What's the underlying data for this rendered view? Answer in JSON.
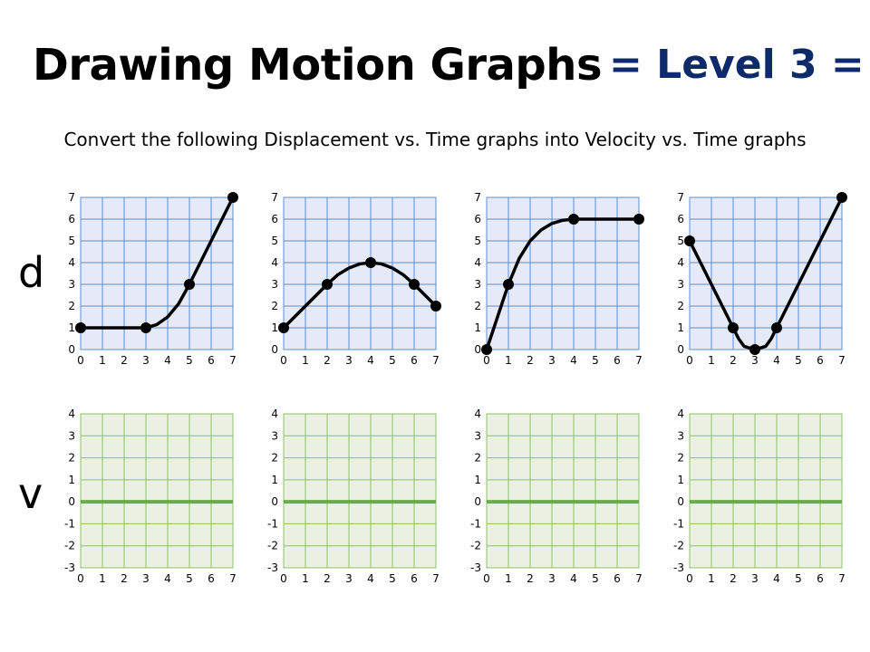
{
  "title": "Drawing Motion Graphs",
  "level": "= Level 3 =",
  "subtitle": "Convert the following Displacement vs. Time graphs into Velocity vs. Time graphs",
  "row_labels": {
    "d": "d",
    "v": "v"
  },
  "colors": {
    "d_fill": "#e6eaf6",
    "d_grid": "#5b8fd1",
    "v_fill": "#eaf1e3",
    "v_grid": "#8cbf6a",
    "v_zero": "#6aab45",
    "curve": "#000000"
  },
  "chart_data": [
    {
      "type": "line",
      "row": "d",
      "xlim": [
        0,
        7
      ],
      "ylim": [
        0,
        7
      ],
      "x_ticks": [
        0,
        1,
        2,
        3,
        4,
        5,
        6,
        7
      ],
      "y_ticks": [
        0,
        1,
        2,
        3,
        4,
        5,
        6,
        7
      ],
      "points": [
        [
          0,
          1
        ],
        [
          3,
          1
        ],
        [
          5,
          3
        ],
        [
          7,
          7
        ]
      ],
      "curve": [
        [
          0,
          1
        ],
        [
          3,
          1
        ],
        [
          3.5,
          1.15
        ],
        [
          4,
          1.5
        ],
        [
          4.5,
          2.1
        ],
        [
          5,
          3
        ],
        [
          7,
          7
        ]
      ]
    },
    {
      "type": "line",
      "row": "d",
      "xlim": [
        0,
        7
      ],
      "ylim": [
        0,
        7
      ],
      "x_ticks": [
        0,
        1,
        2,
        3,
        4,
        5,
        6,
        7
      ],
      "y_ticks": [
        0,
        1,
        2,
        3,
        4,
        5,
        6,
        7
      ],
      "points": [
        [
          0,
          1
        ],
        [
          2,
          3
        ],
        [
          4,
          4
        ],
        [
          6,
          3
        ],
        [
          7,
          2
        ]
      ],
      "curve": [
        [
          0,
          1
        ],
        [
          2,
          3
        ],
        [
          2.5,
          3.45
        ],
        [
          3,
          3.75
        ],
        [
          3.5,
          3.94
        ],
        [
          4,
          4
        ],
        [
          4.5,
          3.94
        ],
        [
          5,
          3.75
        ],
        [
          5.5,
          3.44
        ],
        [
          6,
          3
        ],
        [
          7,
          2
        ]
      ]
    },
    {
      "type": "line",
      "row": "d",
      "xlim": [
        0,
        7
      ],
      "ylim": [
        0,
        7
      ],
      "x_ticks": [
        0,
        1,
        2,
        3,
        4,
        5,
        6,
        7
      ],
      "y_ticks": [
        0,
        1,
        2,
        3,
        4,
        5,
        6,
        7
      ],
      "points": [
        [
          0,
          0
        ],
        [
          1,
          3
        ],
        [
          4,
          6
        ],
        [
          7,
          6
        ]
      ],
      "curve": [
        [
          0,
          0
        ],
        [
          1,
          3
        ],
        [
          1.5,
          4.2
        ],
        [
          2,
          5
        ],
        [
          2.5,
          5.5
        ],
        [
          3,
          5.8
        ],
        [
          3.5,
          5.95
        ],
        [
          4,
          6
        ],
        [
          7,
          6
        ]
      ]
    },
    {
      "type": "line",
      "row": "d",
      "xlim": [
        0,
        7
      ],
      "ylim": [
        0,
        7
      ],
      "x_ticks": [
        0,
        1,
        2,
        3,
        4,
        5,
        6,
        7
      ],
      "y_ticks": [
        0,
        1,
        2,
        3,
        4,
        5,
        6,
        7
      ],
      "points": [
        [
          0,
          5
        ],
        [
          2,
          1
        ],
        [
          3,
          0
        ],
        [
          4,
          1
        ],
        [
          7,
          7
        ]
      ],
      "curve": [
        [
          0,
          5
        ],
        [
          2,
          1
        ],
        [
          2.25,
          0.5
        ],
        [
          2.5,
          0.15
        ],
        [
          3,
          0
        ],
        [
          3.5,
          0.15
        ],
        [
          3.75,
          0.5
        ],
        [
          4,
          1
        ],
        [
          7,
          7
        ]
      ]
    },
    {
      "type": "line",
      "row": "v",
      "xlim": [
        0,
        7
      ],
      "ylim": [
        -3,
        4
      ],
      "x_ticks": [
        0,
        1,
        2,
        3,
        4,
        5,
        6,
        7
      ],
      "y_ticks": [
        4,
        3,
        2,
        1,
        0,
        -1,
        -2,
        -3
      ],
      "points": []
    },
    {
      "type": "line",
      "row": "v",
      "xlim": [
        0,
        7
      ],
      "ylim": [
        -3,
        4
      ],
      "x_ticks": [
        0,
        1,
        2,
        3,
        4,
        5,
        6,
        7
      ],
      "y_ticks": [
        4,
        3,
        2,
        1,
        0,
        -1,
        -2,
        -3
      ],
      "points": []
    },
    {
      "type": "line",
      "row": "v",
      "xlim": [
        0,
        7
      ],
      "ylim": [
        -3,
        4
      ],
      "x_ticks": [
        0,
        1,
        2,
        3,
        4,
        5,
        6,
        7
      ],
      "y_ticks": [
        4,
        3,
        2,
        1,
        0,
        -1,
        -2,
        -3
      ],
      "points": []
    },
    {
      "type": "line",
      "row": "v",
      "xlim": [
        0,
        7
      ],
      "ylim": [
        -3,
        4
      ],
      "x_ticks": [
        0,
        1,
        2,
        3,
        4,
        5,
        6,
        7
      ],
      "y_ticks": [
        4,
        3,
        2,
        1,
        0,
        -1,
        -2,
        -3
      ],
      "points": []
    }
  ]
}
